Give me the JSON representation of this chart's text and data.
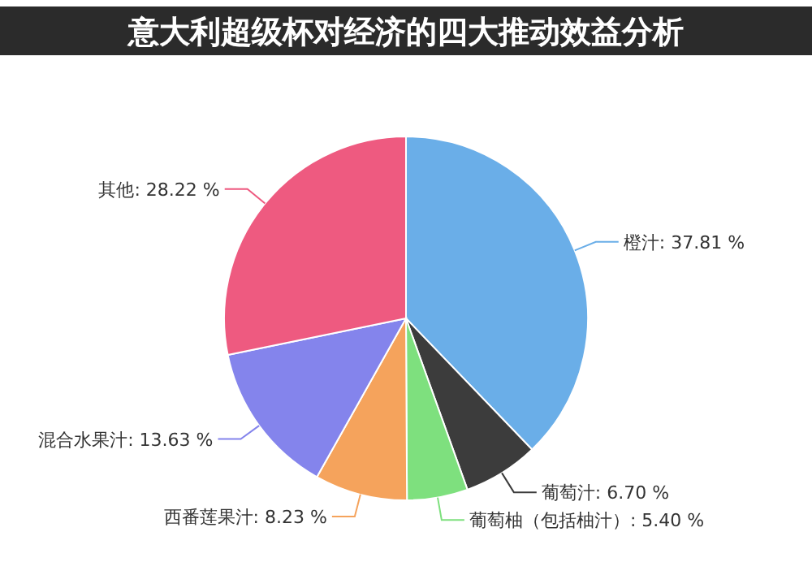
{
  "chart_data": {
    "type": "pie",
    "title": "意大利超级杯对经济的四大推动效益分析",
    "categories": [
      "橙汁",
      "葡萄汁",
      "葡萄柚（包括柚汁）",
      "西番莲果汁",
      "混合水果汁",
      "其他"
    ],
    "values": [
      37.81,
      6.7,
      5.4,
      8.23,
      13.63,
      28.22
    ],
    "value_labels": [
      "37.81 %",
      "6.70 %",
      "5.40 %",
      "8.23 %",
      "13.63 %",
      "28.22 %"
    ],
    "colors": [
      "#6aaee8",
      "#3c3c3c",
      "#7ee07e",
      "#f5a35c",
      "#8484ec",
      "#ee5a80"
    ]
  }
}
